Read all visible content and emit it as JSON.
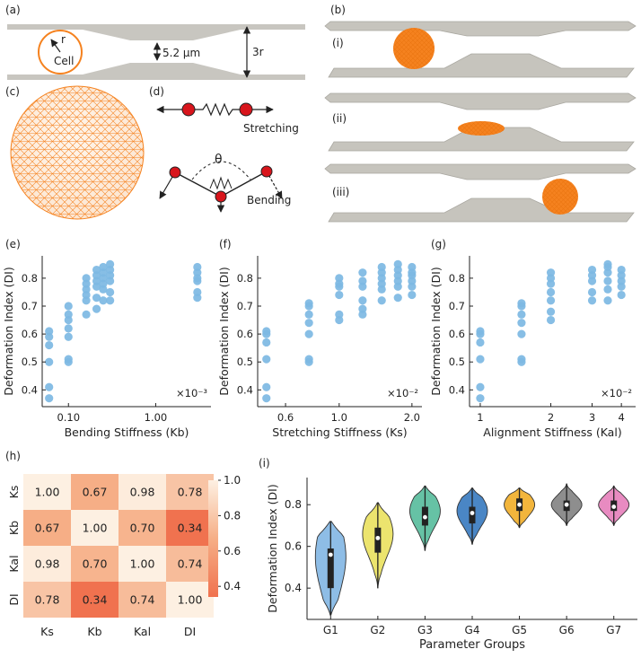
{
  "figure": {
    "panel_letters": [
      "(a)",
      "(b)",
      "(c)",
      "(d)",
      "(e)",
      "(f)",
      "(g)",
      "(h)",
      "(i)"
    ]
  },
  "schematic_a": {
    "cell_label": "Cell",
    "radius_label": "r",
    "gap_label": "5.2 μm",
    "height_label": "3r"
  },
  "schematic_b": {
    "stages": [
      "(i)",
      "(ii)",
      "(iii)"
    ]
  },
  "schematic_d": {
    "stretching_label": "Stretching",
    "bending_label": "Bending",
    "angle_label": "θ"
  },
  "colors": {
    "scatter": "#7db9e3",
    "cell": "#f5821f",
    "channel": "#c8c6c0",
    "heat_low": "#f0724f",
    "heat_high": "#fdf0e2"
  },
  "chart_data": [
    {
      "id": "e",
      "type": "scatter",
      "xscale": "log",
      "xlabel": "Bending Stiffness (Kb)",
      "ylabel": "Deformation Index (DI)",
      "scale_note": "×10⁻³",
      "xlim": [
        0.05,
        4.3
      ],
      "ylim": [
        0.34,
        0.88
      ],
      "xticks": [
        {
          "v": 0.1,
          "l": "0.10"
        },
        {
          "v": 1.0,
          "l": "1.00"
        }
      ],
      "yticks": [
        0.4,
        0.5,
        0.6,
        0.7,
        0.8
      ],
      "groups": [
        {
          "x": 0.06,
          "y": [
            0.37,
            0.41,
            0.5,
            0.56,
            0.59,
            0.61
          ]
        },
        {
          "x": 0.1,
          "y": [
            0.5,
            0.51,
            0.59,
            0.62,
            0.65,
            0.67,
            0.7
          ]
        },
        {
          "x": 0.16,
          "y": [
            0.67,
            0.72,
            0.74,
            0.76,
            0.78,
            0.8
          ]
        },
        {
          "x": 0.21,
          "y": [
            0.69,
            0.73,
            0.77,
            0.79,
            0.81,
            0.83
          ]
        },
        {
          "x": 0.25,
          "y": [
            0.72,
            0.76,
            0.78,
            0.8,
            0.82,
            0.84
          ]
        },
        {
          "x": 0.3,
          "y": [
            0.72,
            0.75,
            0.79,
            0.81,
            0.83,
            0.85
          ]
        },
        {
          "x": 3.0,
          "y": [
            0.73,
            0.75,
            0.79,
            0.8,
            0.82,
            0.84
          ]
        }
      ]
    },
    {
      "id": "f",
      "type": "scatter",
      "xscale": "log",
      "xlabel": "Stretching Stiffness (Ks)",
      "ylabel": "Deformation Index (DI)",
      "scale_note": "×10⁻²",
      "xlim": [
        0.46,
        2.2
      ],
      "ylim": [
        0.34,
        0.88
      ],
      "xticks": [
        {
          "v": 0.6,
          "l": "0.6"
        },
        {
          "v": 1.0,
          "l": "1.0"
        },
        {
          "v": 2.0,
          "l": "2.0"
        }
      ],
      "yticks": [
        0.4,
        0.5,
        0.6,
        0.7,
        0.8
      ],
      "groups": [
        {
          "x": 0.5,
          "y": [
            0.37,
            0.41,
            0.51,
            0.57,
            0.6,
            0.61
          ]
        },
        {
          "x": 0.75,
          "y": [
            0.5,
            0.51,
            0.6,
            0.64,
            0.67,
            0.7,
            0.71
          ]
        },
        {
          "x": 1.0,
          "y": [
            0.65,
            0.67,
            0.74,
            0.77,
            0.78,
            0.8
          ]
        },
        {
          "x": 1.25,
          "y": [
            0.67,
            0.69,
            0.72,
            0.77,
            0.79,
            0.82
          ]
        },
        {
          "x": 1.5,
          "y": [
            0.72,
            0.76,
            0.78,
            0.8,
            0.82,
            0.84
          ]
        },
        {
          "x": 1.75,
          "y": [
            0.73,
            0.77,
            0.79,
            0.81,
            0.83,
            0.85
          ]
        },
        {
          "x": 2.0,
          "y": [
            0.74,
            0.77,
            0.79,
            0.81,
            0.82,
            0.84
          ]
        }
      ]
    },
    {
      "id": "g",
      "type": "scatter",
      "xscale": "log",
      "xlabel": "Alignment Stiffness (Kal)",
      "ylabel": "Deformation Index (DI)",
      "scale_note": "×10⁻²",
      "xlim": [
        0.9,
        4.6
      ],
      "ylim": [
        0.34,
        0.88
      ],
      "xticks": [
        {
          "v": 1,
          "l": "1"
        },
        {
          "v": 2,
          "l": "2"
        },
        {
          "v": 3,
          "l": "3"
        },
        {
          "v": 4,
          "l": "4"
        }
      ],
      "yticks": [
        0.4,
        0.5,
        0.6,
        0.7,
        0.8
      ],
      "groups": [
        {
          "x": 1.0,
          "y": [
            0.37,
            0.41,
            0.51,
            0.57,
            0.6,
            0.61
          ]
        },
        {
          "x": 1.5,
          "y": [
            0.5,
            0.51,
            0.6,
            0.64,
            0.67,
            0.7,
            0.71
          ]
        },
        {
          "x": 2.0,
          "y": [
            0.65,
            0.68,
            0.72,
            0.75,
            0.78,
            0.8,
            0.82
          ]
        },
        {
          "x": 3.0,
          "y": [
            0.72,
            0.75,
            0.79,
            0.81,
            0.83
          ]
        },
        {
          "x": 3.5,
          "y": [
            0.72,
            0.76,
            0.79,
            0.82,
            0.84,
            0.85
          ]
        },
        {
          "x": 4.0,
          "y": [
            0.74,
            0.77,
            0.79,
            0.81,
            0.83
          ]
        }
      ]
    },
    {
      "id": "h",
      "type": "heatmap",
      "row_labels": [
        "Ks",
        "Kb",
        "Kal",
        "DI"
      ],
      "col_labels": [
        "Ks",
        "Kb",
        "Kal",
        "DI"
      ],
      "values": [
        [
          "1.00",
          "0.67",
          "0.98",
          "0.78"
        ],
        [
          "0.67",
          "1.00",
          "0.70",
          "0.34"
        ],
        [
          "0.98",
          "0.70",
          "1.00",
          "0.74"
        ],
        [
          "0.78",
          "0.34",
          "0.74",
          "1.00"
        ]
      ],
      "vmin": 0.34,
      "vmax": 1.0,
      "colorbar_ticks": [
        "0.4",
        "0.6",
        "0.8",
        "1.0"
      ]
    },
    {
      "id": "i",
      "type": "violin",
      "xlabel": "Parameter Groups",
      "ylabel": "Deformation Index (DI)",
      "ylim": [
        0.25,
        0.93
      ],
      "yticks": [
        "0.4",
        "0.6",
        "0.8"
      ],
      "groups": [
        {
          "name": "G1",
          "color": "#8ebde6",
          "min": 0.27,
          "q1": 0.4,
          "median": 0.56,
          "q3": 0.59,
          "max": 0.72,
          "mode": 0.55
        },
        {
          "name": "G2",
          "color": "#ece46e",
          "min": 0.4,
          "q1": 0.57,
          "median": 0.64,
          "q3": 0.69,
          "max": 0.81,
          "mode": 0.66
        },
        {
          "name": "G3",
          "color": "#66c2a5",
          "min": 0.58,
          "q1": 0.7,
          "median": 0.74,
          "q3": 0.79,
          "max": 0.89,
          "mode": 0.77
        },
        {
          "name": "G4",
          "color": "#4a86c5",
          "min": 0.61,
          "q1": 0.71,
          "median": 0.76,
          "q3": 0.79,
          "max": 0.88,
          "mode": 0.77
        },
        {
          "name": "G5",
          "color": "#f2b53c",
          "min": 0.69,
          "q1": 0.77,
          "median": 0.8,
          "q3": 0.83,
          "max": 0.88,
          "mode": 0.8
        },
        {
          "name": "G6",
          "color": "#8e8e8e",
          "min": 0.7,
          "q1": 0.77,
          "median": 0.8,
          "q3": 0.82,
          "max": 0.9,
          "mode": 0.8
        },
        {
          "name": "G7",
          "color": "#e88bc1",
          "min": 0.7,
          "q1": 0.77,
          "median": 0.79,
          "q3": 0.82,
          "max": 0.89,
          "mode": 0.8
        }
      ]
    }
  ]
}
